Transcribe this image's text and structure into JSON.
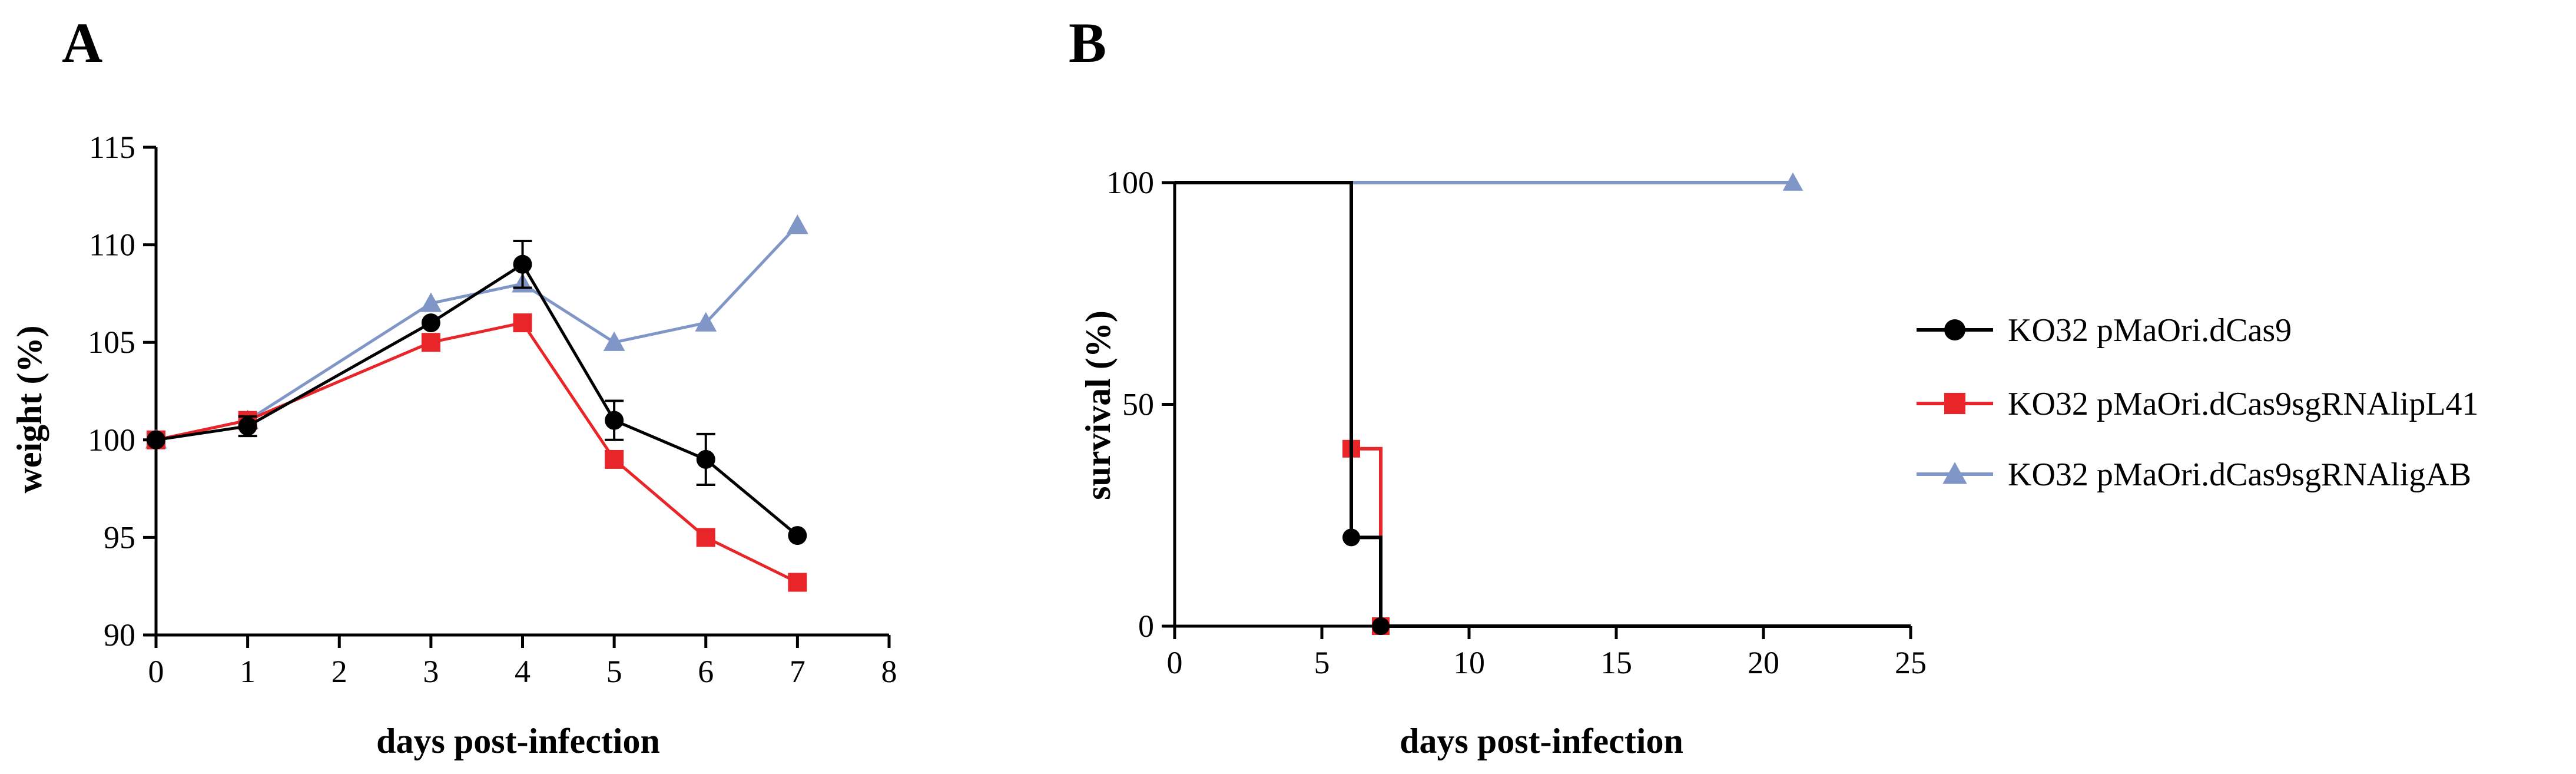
{
  "colors": {
    "dcas9": "#000000",
    "lipL41": "#e8262a",
    "ligAB": "#7f96c6",
    "axis": "#000000"
  },
  "legend": {
    "items": [
      {
        "label": "KO32 pMaOri.dCas9",
        "marker": "circle",
        "color": "#000000"
      },
      {
        "label": "KO32 pMaOri.dCas9sgRNAlipL41",
        "marker": "square",
        "color": "#e8262a"
      },
      {
        "label": "KO32 pMaOri.dCas9sgRNAligAB",
        "marker": "triangle",
        "color": "#7f96c6"
      }
    ]
  },
  "chart_data": [
    {
      "panel_label": "A",
      "type": "line",
      "title": "",
      "xlabel": "days post-infection",
      "ylabel": "weight (%)",
      "xlim": [
        0,
        8
      ],
      "ylim": [
        90,
        115
      ],
      "xticks": [
        0,
        1,
        2,
        3,
        4,
        5,
        6,
        7,
        8
      ],
      "yticks": [
        90,
        95,
        100,
        105,
        110,
        115
      ],
      "series": [
        {
          "name": "KO32 pMaOri.dCas9sgRNAligAB",
          "marker": "triangle",
          "color": "#7f96c6",
          "x": [
            0,
            1,
            3,
            4,
            5,
            6,
            7
          ],
          "y": [
            100,
            101,
            107,
            108,
            105,
            106,
            111
          ]
        },
        {
          "name": "KO32 pMaOri.dCas9sgRNAlipL41",
          "marker": "square",
          "color": "#e8262a",
          "x": [
            0,
            1,
            3,
            4,
            5,
            6,
            7
          ],
          "y": [
            100,
            101,
            105,
            106,
            99,
            95,
            92.7
          ]
        },
        {
          "name": "KO32 pMaOri.dCas9",
          "marker": "circle",
          "color": "#000000",
          "x": [
            0,
            1,
            3,
            4,
            5,
            6,
            7
          ],
          "y": [
            100,
            100.7,
            106,
            109,
            101,
            99,
            95.1
          ],
          "error": [
            0,
            0.5,
            0,
            1.2,
            1.0,
            1.3,
            0
          ]
        }
      ]
    },
    {
      "panel_label": "B",
      "type": "line",
      "subtype": "step-survival",
      "title": "",
      "xlabel": "days post-infection",
      "ylabel": "survival (%)",
      "xlim": [
        0,
        25
      ],
      "ylim": [
        0,
        100
      ],
      "xticks": [
        0,
        5,
        10,
        15,
        20,
        25
      ],
      "yticks": [
        0,
        50,
        100
      ],
      "series": [
        {
          "name": "KO32 pMaOri.dCas9sgRNAligAB",
          "marker": "triangle",
          "color": "#7f96c6",
          "steps": [
            [
              0,
              100
            ],
            [
              21,
              100
            ]
          ],
          "markers": [
            [
              21,
              100
            ]
          ]
        },
        {
          "name": "KO32 pMaOri.dCas9sgRNAlipL41",
          "marker": "square",
          "color": "#e8262a",
          "steps": [
            [
              0,
              100
            ],
            [
              6,
              100
            ],
            [
              6,
              40
            ],
            [
              7,
              40
            ],
            [
              7,
              0
            ],
            [
              25,
              0
            ]
          ],
          "markers": [
            [
              6,
              40
            ],
            [
              7,
              0
            ]
          ]
        },
        {
          "name": "KO32 pMaOri.dCas9",
          "marker": "circle",
          "color": "#000000",
          "steps": [
            [
              0,
              100
            ],
            [
              6,
              100
            ],
            [
              6,
              20
            ],
            [
              7,
              20
            ],
            [
              7,
              0
            ],
            [
              25,
              0
            ]
          ],
          "markers": [
            [
              6,
              20
            ],
            [
              7,
              0
            ]
          ]
        }
      ]
    }
  ]
}
